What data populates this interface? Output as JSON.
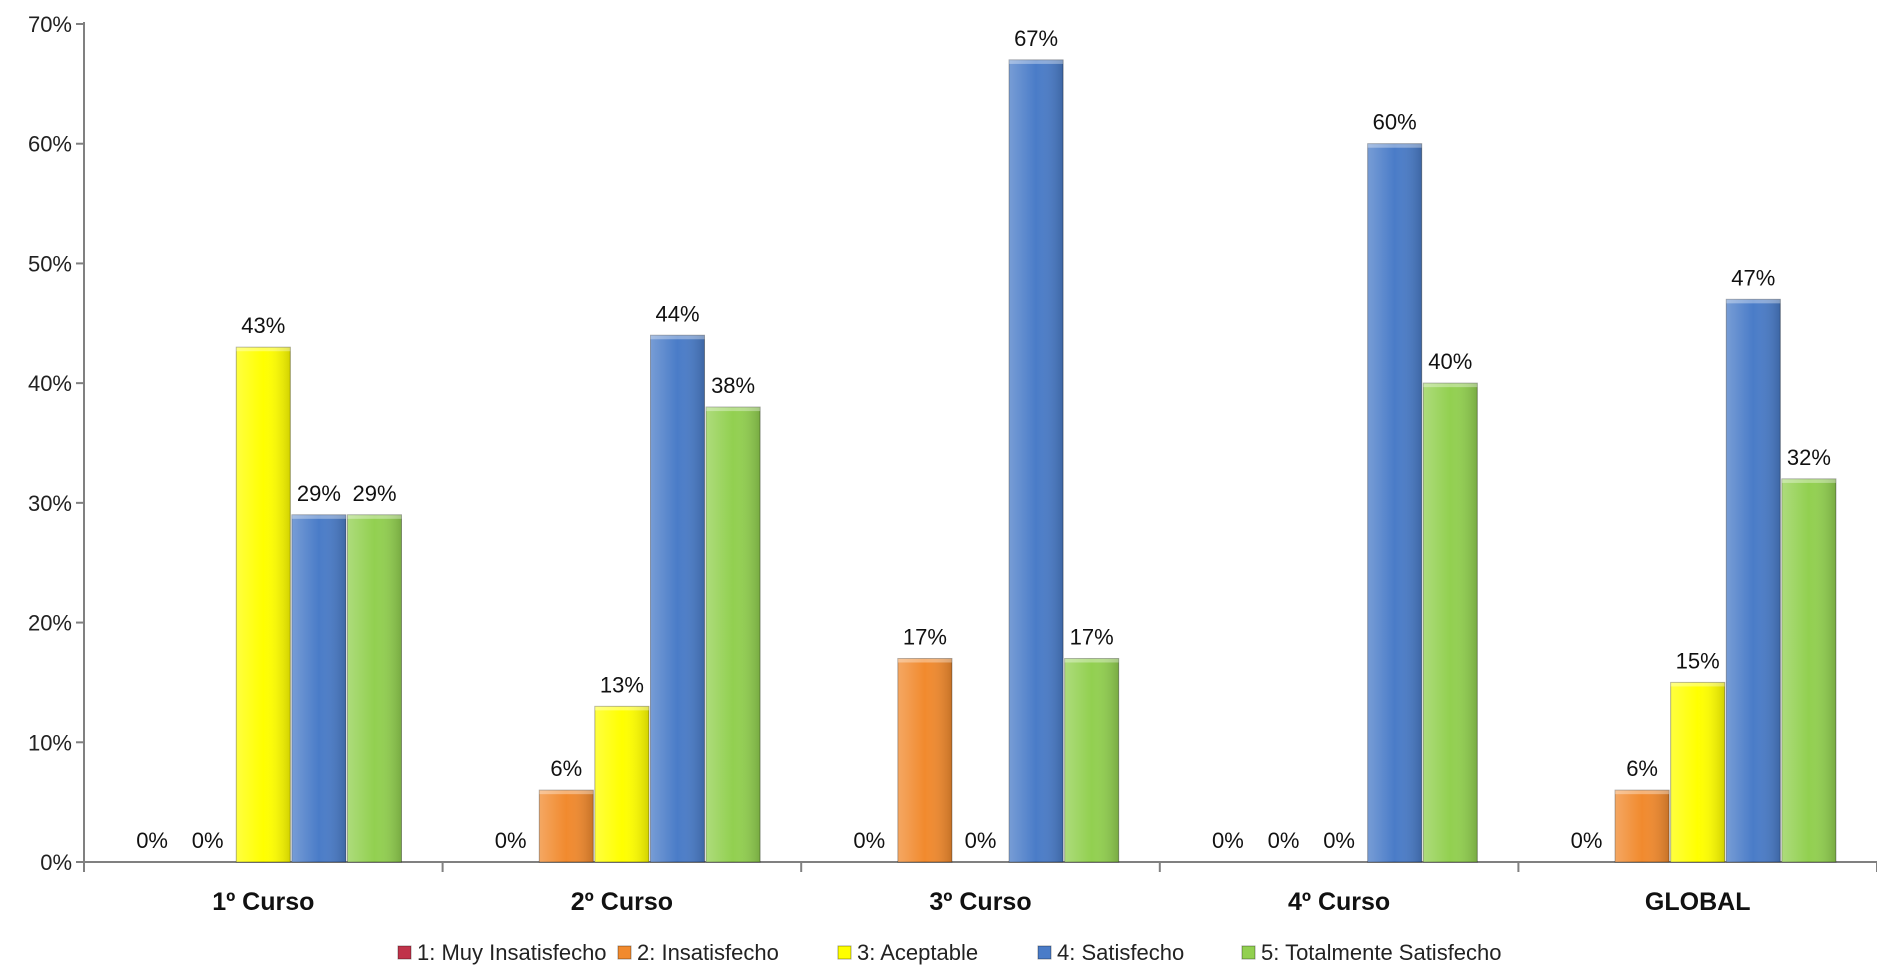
{
  "chart_data": {
    "type": "bar",
    "categories": [
      "1º Curso",
      "2º Curso",
      "3º Curso",
      "4º Curso",
      "GLOBAL"
    ],
    "series": [
      {
        "name": "1: Muy Insatisfecho",
        "color": "#c0334a",
        "values": [
          0,
          0,
          0,
          0,
          0
        ],
        "labels": [
          "0%",
          "0%",
          "0%",
          "0%",
          "0%"
        ]
      },
      {
        "name": "2: Insatisfecho",
        "color": "#f18a2e",
        "values": [
          0,
          6,
          17,
          0,
          6
        ],
        "labels": [
          "0%",
          "6%",
          "17%",
          "0%",
          "6%"
        ]
      },
      {
        "name": "3: Aceptable",
        "color": "#ffff00",
        "values": [
          43,
          13,
          0,
          0,
          15
        ],
        "labels": [
          "43%",
          "13%",
          "0%",
          "0%",
          "15%"
        ]
      },
      {
        "name": "4: Satisfecho",
        "color": "#4a7cc8",
        "values": [
          29,
          44,
          67,
          60,
          47
        ],
        "labels": [
          "29%",
          "44%",
          "67%",
          "60%",
          "47%"
        ]
      },
      {
        "name": "5: Totalmente Satisfecho",
        "color": "#92d050",
        "values": [
          29,
          38,
          17,
          40,
          32
        ],
        "labels": [
          "29%",
          "38%",
          "17%",
          "40%",
          "32%"
        ]
      }
    ],
    "ylim": [
      0,
      70
    ],
    "yticks": [
      "0%",
      "10%",
      "20%",
      "30%",
      "40%",
      "50%",
      "60%",
      "70%"
    ],
    "ytick_values": [
      0,
      10,
      20,
      30,
      40,
      50,
      60,
      70
    ],
    "legend_position": "bottom",
    "grid": false
  }
}
